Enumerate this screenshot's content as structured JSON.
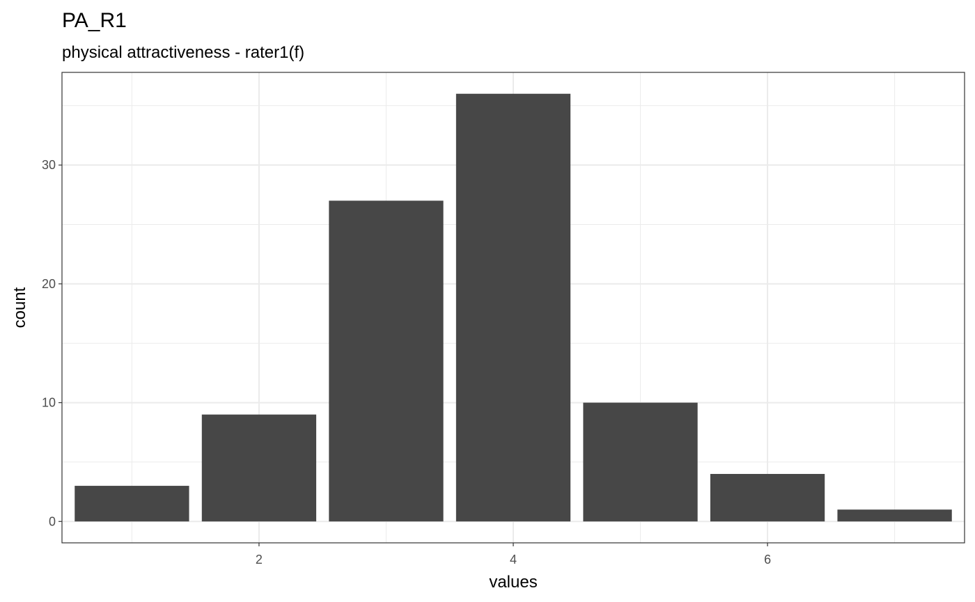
{
  "chart_data": {
    "type": "bar",
    "title": "PA_R1",
    "subtitle": "physical attractiveness - rater1(f)",
    "xlabel": "values",
    "ylabel": "count",
    "x": [
      1,
      2,
      3,
      4,
      5,
      6,
      7
    ],
    "values": [
      3,
      9,
      27,
      36,
      10,
      4,
      1
    ],
    "xlim": [
      0.45,
      7.55
    ],
    "ylim": [
      -1.8,
      37.8
    ],
    "x_ticks": [
      2,
      4,
      6
    ],
    "y_ticks": [
      0,
      10,
      20,
      30
    ],
    "x_tick_labels": [
      "2",
      "4",
      "6"
    ],
    "y_tick_labels": [
      "0",
      "10",
      "20",
      "30"
    ],
    "grid": true,
    "bar_color": "#474747",
    "grid_color": "#ebebeb",
    "panel_border_color": "#333333"
  }
}
